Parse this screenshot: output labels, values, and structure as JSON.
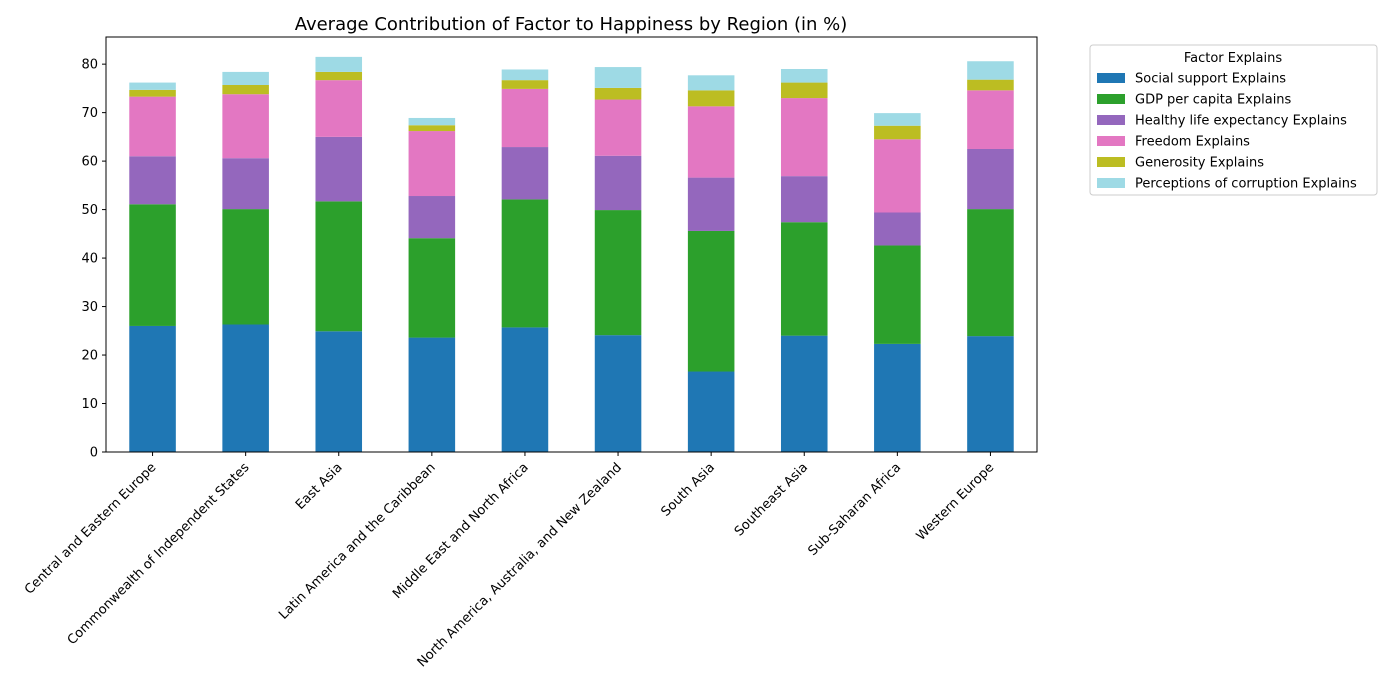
{
  "chart_data": {
    "type": "bar",
    "stacked": true,
    "title": "Average Contribution of Factor to Happiness by Region (in %)",
    "xlabel": "",
    "ylabel": "",
    "ylim": [
      0,
      85.6
    ],
    "yticks": [
      0,
      10,
      20,
      30,
      40,
      50,
      60,
      70,
      80
    ],
    "grid": false,
    "legend": {
      "title": "Factor Explains",
      "placement": "outside-top-right"
    },
    "categories": [
      "Central and Eastern Europe",
      "Commonwealth of Independent States",
      "East Asia",
      "Latin America and the Caribbean",
      "Middle East and North Africa",
      "North America, Australia, and New Zealand",
      "South Asia",
      "Southeast Asia",
      "Sub-Saharan Africa",
      "Western Europe"
    ],
    "series": [
      {
        "name": "Social support Explains",
        "color": "#1f77b4",
        "values": [
          26.0,
          26.3,
          24.9,
          23.6,
          25.7,
          24.1,
          16.6,
          24.0,
          22.3,
          23.9
        ]
      },
      {
        "name": "GDP per capita Explains",
        "color": "#2ca02c",
        "values": [
          25.1,
          23.8,
          26.8,
          20.5,
          26.4,
          25.8,
          29.0,
          23.4,
          20.3,
          26.2
        ]
      },
      {
        "name": "Healthy life expectancy Explains",
        "color": "#9467bd",
        "values": [
          9.9,
          10.5,
          13.3,
          8.7,
          10.8,
          11.2,
          11.0,
          9.5,
          6.8,
          12.4
        ]
      },
      {
        "name": "Freedom Explains",
        "color": "#e377c2",
        "values": [
          12.3,
          13.2,
          11.7,
          13.4,
          12.0,
          11.6,
          14.7,
          16.1,
          15.1,
          12.1
        ]
      },
      {
        "name": "Generosity Explains",
        "color": "#bcbd22",
        "values": [
          1.4,
          1.9,
          1.7,
          1.2,
          1.8,
          2.4,
          3.3,
          3.2,
          2.8,
          2.2
        ]
      },
      {
        "name": "Perceptions of corruption Explains",
        "color": "#9edae5",
        "values": [
          1.5,
          2.7,
          3.1,
          1.5,
          2.2,
          4.3,
          3.1,
          2.8,
          2.6,
          3.8
        ]
      }
    ]
  }
}
